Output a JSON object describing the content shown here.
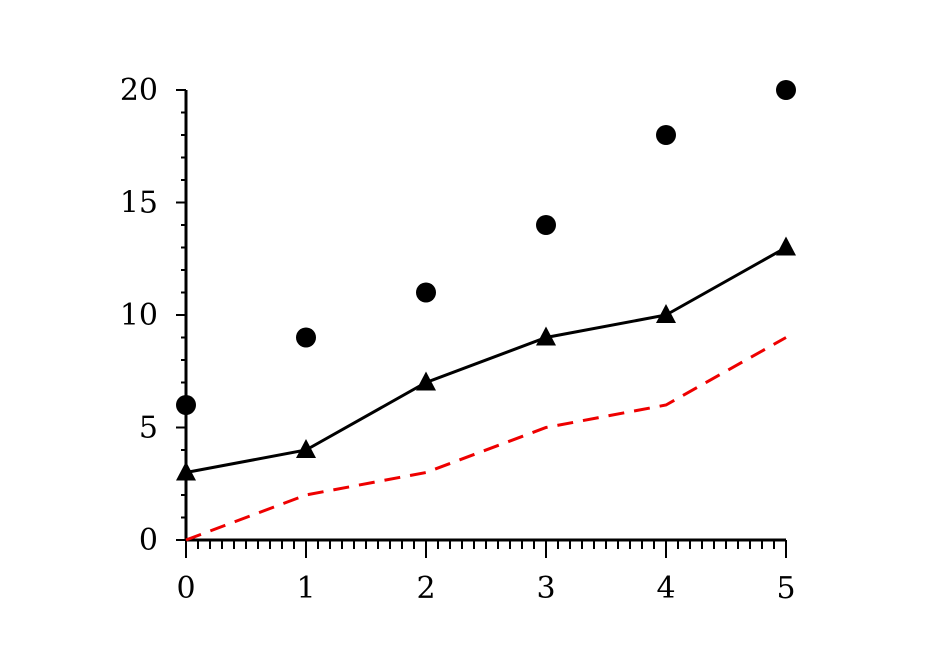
{
  "chart_data": {
    "type": "line",
    "x": [
      0,
      1,
      2,
      3,
      4,
      5
    ],
    "series": [
      {
        "style": "markers",
        "marker": "circle",
        "color": "#000000",
        "values": [
          6,
          9,
          11,
          14,
          18,
          20
        ]
      },
      {
        "style": "line-markers",
        "marker": "triangle",
        "color": "#000000",
        "values": [
          3,
          4,
          7,
          9,
          10,
          13
        ]
      },
      {
        "style": "dashed-line",
        "color": "#ee0000",
        "values": [
          0,
          2,
          3,
          5,
          6,
          9
        ]
      }
    ],
    "xlim": [
      0,
      5
    ],
    "ylim": [
      0,
      20
    ],
    "x_ticks": [
      "0",
      "1",
      "2",
      "3",
      "4",
      "5"
    ],
    "y_ticks": [
      "0",
      "5",
      "10",
      "15",
      "20"
    ],
    "grid": false,
    "title": "",
    "xlabel": "",
    "ylabel": ""
  }
}
